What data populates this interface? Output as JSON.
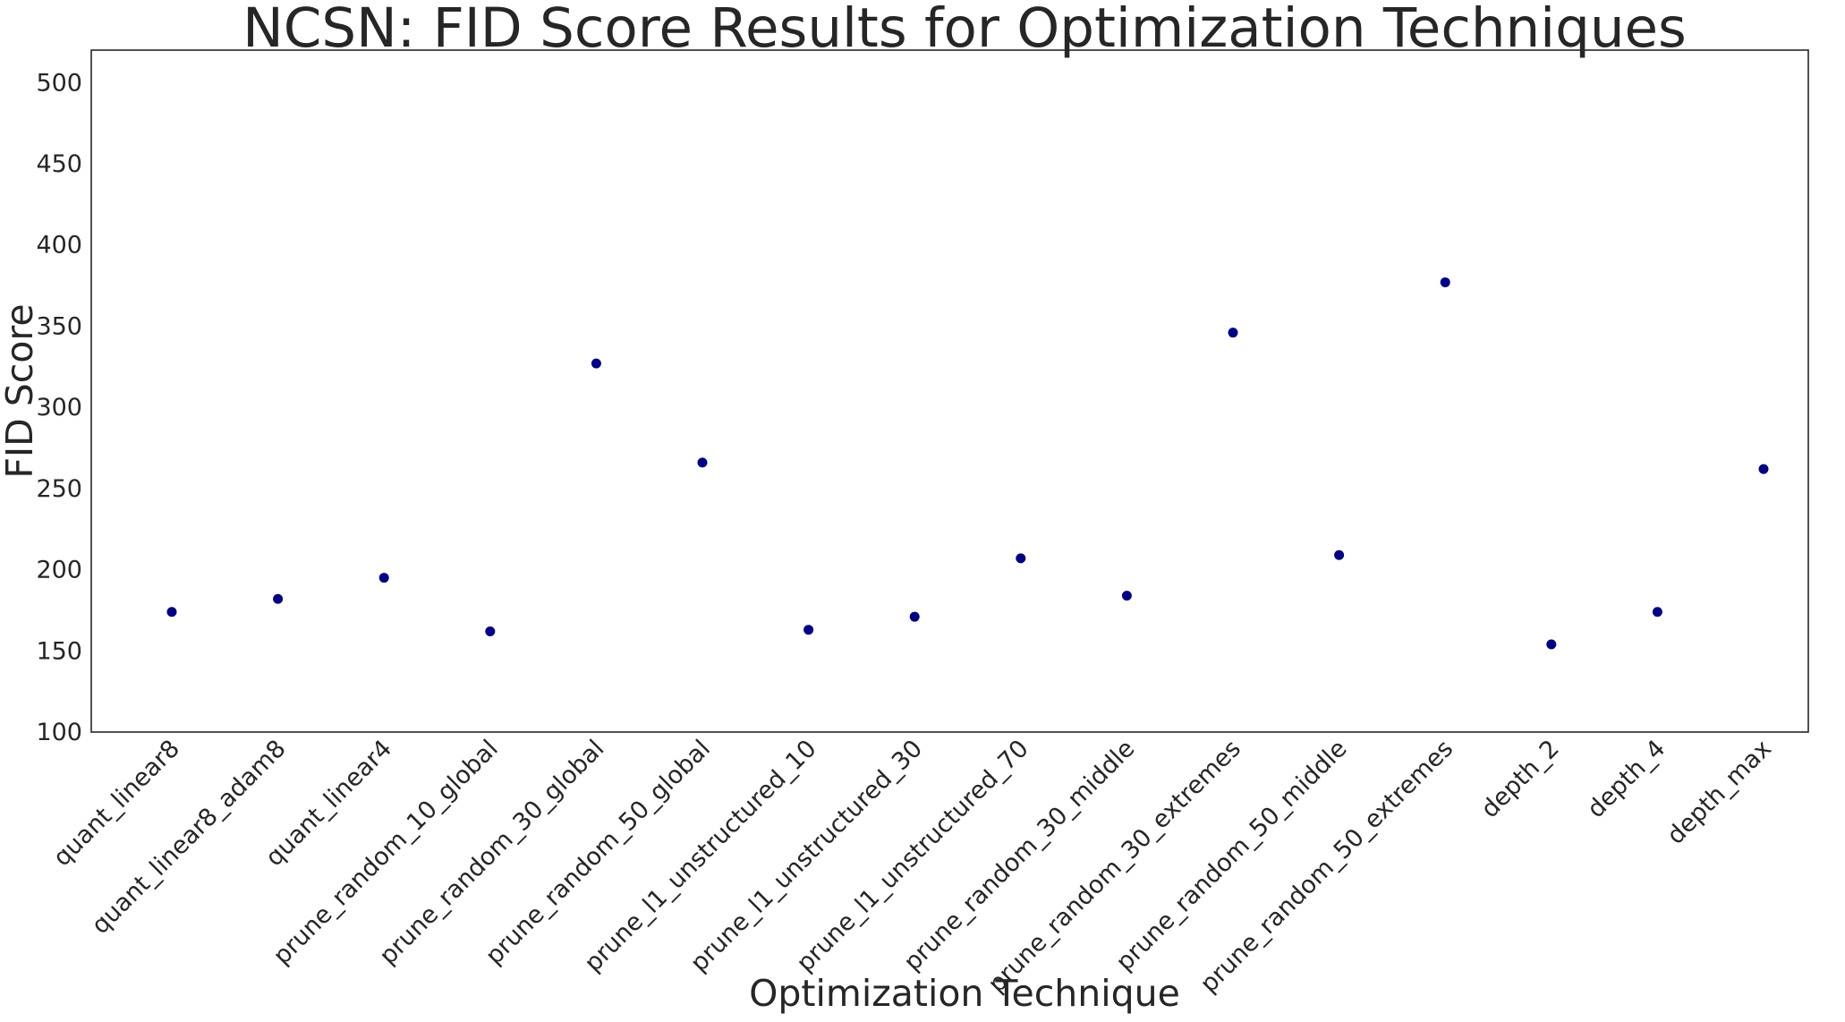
{
  "chart_data": {
    "type": "scatter",
    "title": "NCSN: FID Score Results for Optimization Techniques",
    "xlabel": "Optimization Technique",
    "ylabel": "FID Score",
    "ylim": [
      100,
      520
    ],
    "yticks": [
      100,
      150,
      200,
      250,
      300,
      350,
      400,
      450,
      500
    ],
    "grid": false,
    "legend": "none",
    "marker_color": "#000080",
    "categories": [
      "quant_linear8",
      "quant_linear8_adam8",
      "quant_linear4",
      "prune_random_10_global",
      "prune_random_30_global",
      "prune_random_50_global",
      "prune_l1_unstructured_10",
      "prune_l1_unstructured_30",
      "prune_l1_unstructured_70",
      "prune_random_30_middle",
      "prune_random_30_extremes",
      "prune_random_50_middle",
      "prune_random_50_extremes",
      "depth_2",
      "depth_4",
      "depth_max"
    ],
    "values": [
      174,
      182,
      195,
      162,
      327,
      266,
      163,
      171,
      207,
      184,
      346,
      209,
      377,
      154,
      174,
      262
    ]
  }
}
